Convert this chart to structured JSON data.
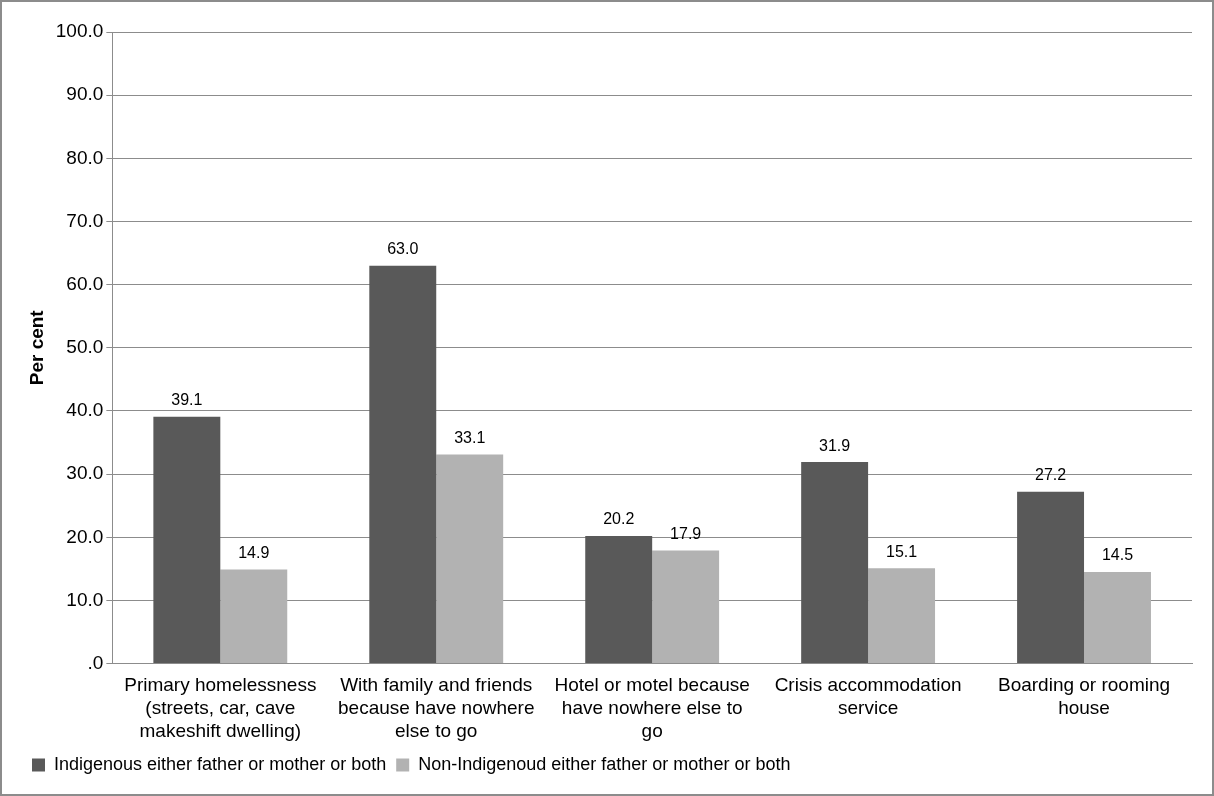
{
  "chart_data": {
    "type": "bar",
    "ylabel": "Per cent",
    "categories": [
      "Primary homelessness (streets, car, cave makeshift dwelling)",
      "With family and friends because have nowhere else to go",
      "Hotel or motel because have nowhere else to go",
      "Crisis accommodation service",
      "Boarding or rooming house"
    ],
    "series": [
      {
        "name": "Indigenous either father or mother or both",
        "color": "#595959",
        "values": [
          39.1,
          63.0,
          20.2,
          31.9,
          27.2
        ],
        "value_labels": [
          "39.1",
          "63.0",
          "20.2",
          "31.9",
          "27.2"
        ]
      },
      {
        "name": "Non-Indigenoud either father or mother or both",
        "color": "#b2b2b2",
        "values": [
          14.9,
          33.1,
          17.9,
          15.1,
          14.5
        ],
        "value_labels": [
          "14.9",
          "33.1",
          "17.9",
          "15.1",
          "14.5"
        ]
      }
    ],
    "ylim": [
      0,
      100
    ],
    "yticks": [
      {
        "value": 0,
        "label": ".0"
      },
      {
        "value": 10,
        "label": "10.0"
      },
      {
        "value": 20,
        "label": "20.0"
      },
      {
        "value": 30,
        "label": "30.0"
      },
      {
        "value": 40,
        "label": "40.0"
      },
      {
        "value": 50,
        "label": "50.0"
      },
      {
        "value": 60,
        "label": "60.0"
      },
      {
        "value": 70,
        "label": "70.0"
      },
      {
        "value": 80,
        "label": "80.0"
      },
      {
        "value": 90,
        "label": "90.0"
      },
      {
        "value": 100,
        "label": "100.0"
      }
    ],
    "grid": "y",
    "legend": "bottom"
  }
}
